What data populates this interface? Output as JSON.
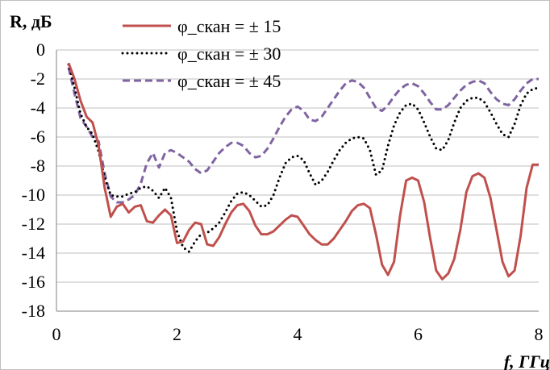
{
  "chart_data": {
    "type": "line",
    "ylabel": "R, дБ",
    "xlabel": "f, ГГц",
    "xlim": [
      0,
      8
    ],
    "ylim": [
      -18,
      0
    ],
    "x_ticks": [
      "0",
      "2",
      "4",
      "6",
      "8"
    ],
    "y_ticks": [
      "0",
      "-2",
      "-4",
      "-6",
      "-8",
      "-10",
      "-12",
      "-14",
      "-16",
      "-18"
    ],
    "grid": {
      "horizontal": true,
      "vertical": false
    },
    "legend_position": "top-center",
    "series": [
      {
        "name": "φ_скан = ± 15",
        "color": "#c0504d",
        "style": "solid",
        "x": [
          0.2,
          0.3,
          0.4,
          0.5,
          0.6,
          0.7,
          0.8,
          0.9,
          1.0,
          1.1,
          1.2,
          1.3,
          1.4,
          1.5,
          1.6,
          1.7,
          1.8,
          1.9,
          2.0,
          2.1,
          2.2,
          2.3,
          2.4,
          2.5,
          2.6,
          2.7,
          2.8,
          2.9,
          3.0,
          3.1,
          3.2,
          3.3,
          3.4,
          3.5,
          3.6,
          3.7,
          3.8,
          3.9,
          4.0,
          4.1,
          4.2,
          4.3,
          4.4,
          4.5,
          4.6,
          4.7,
          4.8,
          4.9,
          5.0,
          5.1,
          5.2,
          5.3,
          5.4,
          5.5,
          5.6,
          5.7,
          5.8,
          5.9,
          6.0,
          6.1,
          6.2,
          6.3,
          6.4,
          6.5,
          6.6,
          6.7,
          6.8,
          6.9,
          7.0,
          7.1,
          7.2,
          7.3,
          7.4,
          7.5,
          7.6,
          7.7,
          7.8,
          7.9,
          8.0
        ],
        "y": [
          -0.9,
          -2.0,
          -3.5,
          -4.6,
          -5.0,
          -6.6,
          -9.5,
          -11.5,
          -10.8,
          -10.6,
          -11.2,
          -10.8,
          -10.7,
          -11.8,
          -11.9,
          -11.4,
          -11.0,
          -11.4,
          -13.3,
          -13.2,
          -12.4,
          -11.9,
          -12.0,
          -13.4,
          -13.5,
          -12.9,
          -12.0,
          -11.2,
          -10.7,
          -10.6,
          -11.1,
          -12.1,
          -12.7,
          -12.7,
          -12.5,
          -12.1,
          -11.7,
          -11.4,
          -11.5,
          -12.1,
          -12.7,
          -13.1,
          -13.4,
          -13.4,
          -13.0,
          -12.4,
          -11.8,
          -11.1,
          -10.7,
          -10.6,
          -10.9,
          -12.7,
          -14.8,
          -15.5,
          -14.6,
          -11.4,
          -9.0,
          -8.8,
          -9.0,
          -10.5,
          -13.0,
          -15.2,
          -15.8,
          -15.4,
          -14.4,
          -12.4,
          -9.8,
          -8.7,
          -8.5,
          -8.8,
          -10.2,
          -12.4,
          -14.6,
          -15.6,
          -15.2,
          -12.8,
          -9.5,
          -7.9,
          -7.9
        ]
      },
      {
        "name": "φ_скан = ± 30",
        "color": "#000000",
        "style": "dotted",
        "x": [
          0.2,
          0.3,
          0.4,
          0.5,
          0.6,
          0.7,
          0.8,
          0.9,
          1.0,
          1.1,
          1.2,
          1.3,
          1.4,
          1.5,
          1.6,
          1.7,
          1.8,
          1.9,
          2.0,
          2.1,
          2.2,
          2.3,
          2.4,
          2.5,
          2.6,
          2.7,
          2.8,
          2.9,
          3.0,
          3.1,
          3.2,
          3.3,
          3.4,
          3.5,
          3.6,
          3.7,
          3.8,
          3.9,
          4.0,
          4.1,
          4.2,
          4.3,
          4.4,
          4.5,
          4.6,
          4.7,
          4.8,
          4.9,
          5.0,
          5.1,
          5.2,
          5.3,
          5.4,
          5.5,
          5.6,
          5.7,
          5.8,
          5.9,
          6.0,
          6.1,
          6.2,
          6.3,
          6.4,
          6.5,
          6.6,
          6.7,
          6.8,
          6.9,
          7.0,
          7.1,
          7.2,
          7.3,
          7.4,
          7.5,
          7.6,
          7.7,
          7.8,
          7.9,
          8.0
        ],
        "y": [
          -1.0,
          -2.6,
          -4.4,
          -5.3,
          -5.8,
          -7.0,
          -8.8,
          -10.0,
          -10.1,
          -10.1,
          -9.9,
          -9.8,
          -9.5,
          -9.4,
          -9.7,
          -10.2,
          -9.5,
          -10.2,
          -12.5,
          -13.6,
          -13.9,
          -13.2,
          -12.7,
          -12.6,
          -12.3,
          -11.9,
          -11.2,
          -10.4,
          -9.9,
          -9.8,
          -10.0,
          -10.4,
          -10.8,
          -10.7,
          -10.0,
          -8.8,
          -7.8,
          -7.4,
          -7.3,
          -7.6,
          -8.5,
          -9.3,
          -9.0,
          -8.4,
          -7.6,
          -6.9,
          -6.4,
          -6.1,
          -6.0,
          -6.1,
          -6.9,
          -8.6,
          -8.3,
          -6.6,
          -5.2,
          -4.3,
          -3.8,
          -3.7,
          -4.1,
          -5.0,
          -6.0,
          -6.8,
          -6.9,
          -6.2,
          -5.0,
          -4.0,
          -3.5,
          -3.3,
          -3.3,
          -3.6,
          -4.3,
          -5.1,
          -5.8,
          -6.0,
          -5.1,
          -3.8,
          -3.0,
          -2.7,
          -2.6
        ]
      },
      {
        "name": "φ_скан = ± 45",
        "color": "#8064a2",
        "style": "dashed",
        "x": [
          0.2,
          0.3,
          0.4,
          0.5,
          0.6,
          0.7,
          0.8,
          0.9,
          1.0,
          1.1,
          1.2,
          1.3,
          1.4,
          1.5,
          1.6,
          1.7,
          1.8,
          1.9,
          2.0,
          2.1,
          2.2,
          2.3,
          2.4,
          2.5,
          2.6,
          2.7,
          2.8,
          2.9,
          3.0,
          3.1,
          3.2,
          3.3,
          3.4,
          3.5,
          3.6,
          3.7,
          3.8,
          3.9,
          4.0,
          4.1,
          4.2,
          4.3,
          4.4,
          4.5,
          4.6,
          4.7,
          4.8,
          4.9,
          5.0,
          5.1,
          5.2,
          5.3,
          5.4,
          5.5,
          5.6,
          5.7,
          5.8,
          5.9,
          6.0,
          6.1,
          6.2,
          6.3,
          6.4,
          6.5,
          6.6,
          6.7,
          6.8,
          6.9,
          7.0,
          7.1,
          7.2,
          7.3,
          7.4,
          7.5,
          7.6,
          7.7,
          7.8,
          7.9,
          8.0
        ],
        "y": [
          -1.2,
          -3.0,
          -4.7,
          -5.3,
          -6.0,
          -6.3,
          -8.5,
          -10.1,
          -10.5,
          -10.5,
          -10.3,
          -10.0,
          -9.2,
          -7.8,
          -7.1,
          -8.1,
          -7.1,
          -6.9,
          -7.1,
          -7.4,
          -7.7,
          -8.2,
          -8.5,
          -8.3,
          -7.7,
          -7.1,
          -6.7,
          -6.4,
          -6.4,
          -6.6,
          -7.1,
          -7.4,
          -7.3,
          -6.8,
          -6.1,
          -5.3,
          -4.6,
          -4.1,
          -3.9,
          -4.2,
          -4.8,
          -4.9,
          -4.6,
          -4.0,
          -3.4,
          -2.8,
          -2.3,
          -2.1,
          -2.2,
          -2.6,
          -3.3,
          -4.0,
          -4.2,
          -3.8,
          -3.2,
          -2.7,
          -2.4,
          -2.3,
          -2.5,
          -3.0,
          -3.6,
          -4.1,
          -4.1,
          -3.8,
          -3.3,
          -2.8,
          -2.4,
          -2.2,
          -2.1,
          -2.3,
          -2.9,
          -3.4,
          -3.7,
          -3.8,
          -3.4,
          -2.8,
          -2.3,
          -2.0,
          -2.0
        ]
      }
    ]
  }
}
